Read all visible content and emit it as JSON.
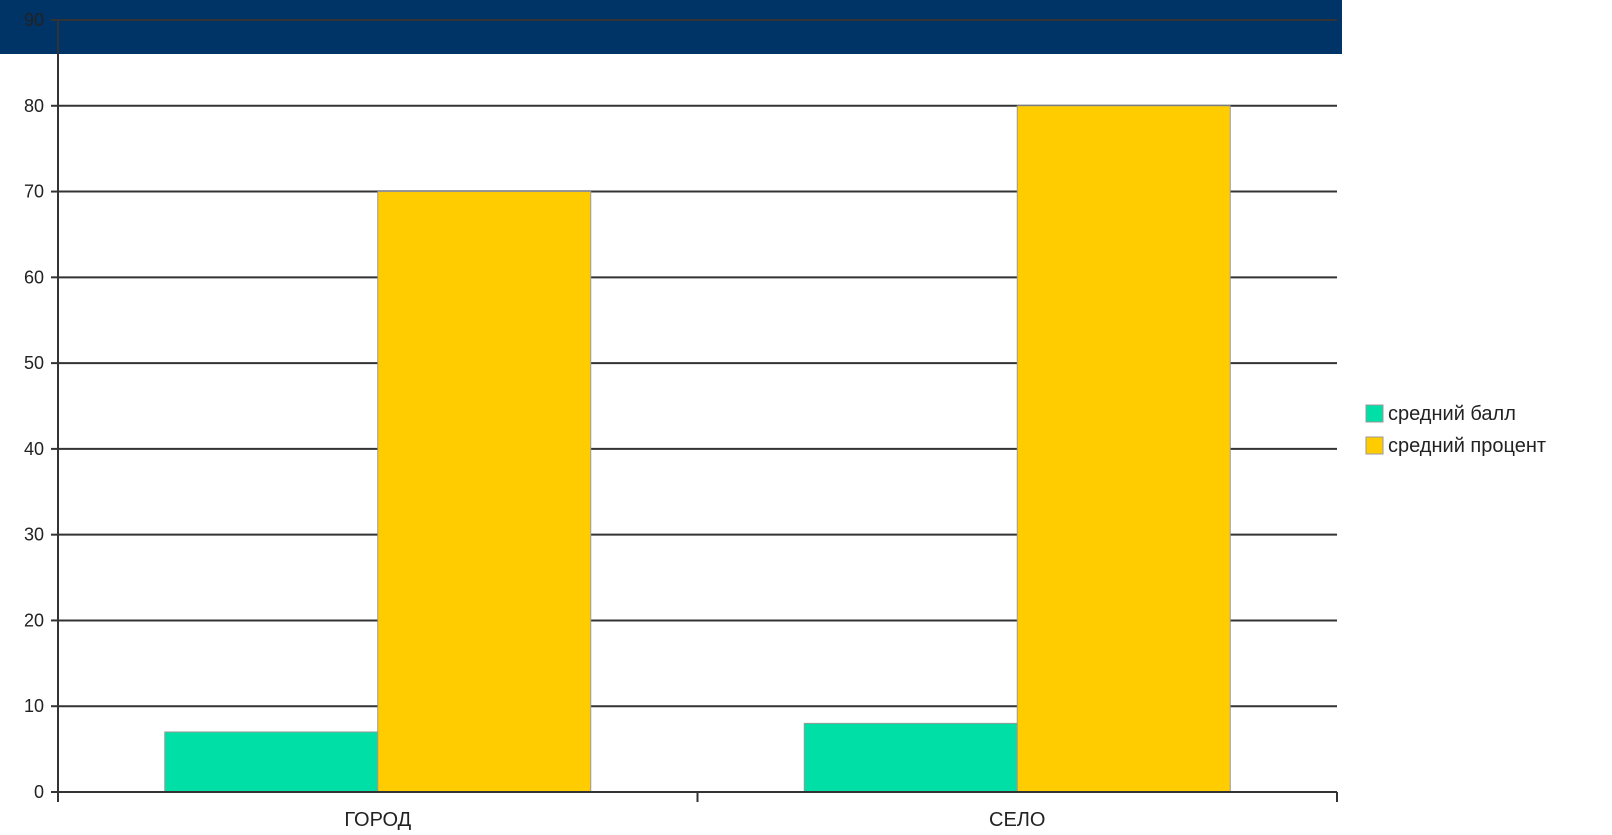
{
  "chart_data": {
    "type": "bar",
    "title": "",
    "xlabel": "",
    "ylabel": "",
    "categories": [
      "ГОРОД",
      "СЕЛО"
    ],
    "series": [
      {
        "name": "средний балл",
        "values": [
          7,
          8
        ],
        "color": "#00dfa5"
      },
      {
        "name": "средний процент",
        "values": [
          70,
          80
        ],
        "color": "#ffcc00"
      }
    ],
    "ylim": [
      0,
      90
    ],
    "yticks": [
      0,
      10,
      20,
      30,
      40,
      50,
      60,
      70,
      80,
      90
    ],
    "grid": true,
    "legend_position": "right"
  },
  "colors": {
    "header_band": "#003366",
    "gridline": "#333333",
    "axis": "#333333",
    "bar_outline": "#999999"
  }
}
